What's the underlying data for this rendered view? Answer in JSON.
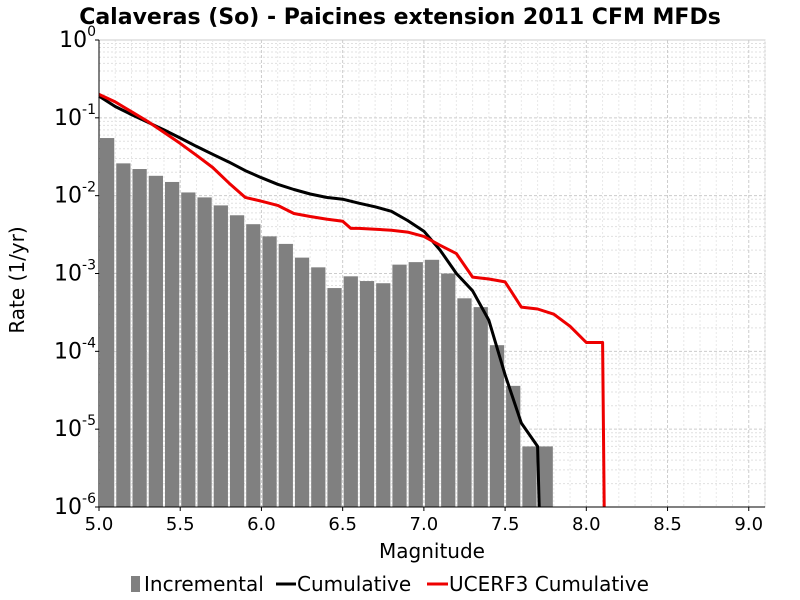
{
  "chart_data": {
    "type": "bar",
    "title": "Calaveras (So) - Paicines extension 2011 CFM MFDs",
    "xlabel": "Magnitude",
    "ylabel": "Rate (1/yr)",
    "xlim": [
      5.0,
      9.1
    ],
    "ylim": [
      1e-06,
      1
    ],
    "yscale": "log",
    "grid": true,
    "legend_position": "bottom",
    "xticks": [
      "5.0",
      "5.5",
      "6.0",
      "6.5",
      "7.0",
      "7.5",
      "8.0",
      "8.5",
      "9.0"
    ],
    "yticks": [
      {
        "base": "10",
        "exp": "-6"
      },
      {
        "base": "10",
        "exp": "-5"
      },
      {
        "base": "10",
        "exp": "-4"
      },
      {
        "base": "10",
        "exp": "-3"
      },
      {
        "base": "10",
        "exp": "-2"
      },
      {
        "base": "10",
        "exp": "-1"
      },
      {
        "base": "10",
        "exp": "0"
      }
    ],
    "series": [
      {
        "name": "Incremental",
        "kind": "bar",
        "color": "#808080",
        "x": [
          5.05,
          5.15,
          5.25,
          5.35,
          5.45,
          5.55,
          5.65,
          5.75,
          5.85,
          5.95,
          6.05,
          6.15,
          6.25,
          6.35,
          6.45,
          6.55,
          6.65,
          6.75,
          6.85,
          6.95,
          7.05,
          7.15,
          7.25,
          7.35,
          7.45,
          7.55,
          7.65,
          7.75
        ],
        "values": [
          0.055,
          0.026,
          0.022,
          0.018,
          0.015,
          0.011,
          0.0095,
          0.0075,
          0.0056,
          0.0043,
          0.003,
          0.0024,
          0.0016,
          0.0012,
          0.00065,
          0.00092,
          0.0008,
          0.00075,
          0.0013,
          0.0014,
          0.0015,
          0.001,
          0.00048,
          0.00037,
          0.00012,
          3.6e-05,
          6e-06,
          6e-06
        ]
      },
      {
        "name": "Cumulative",
        "kind": "line",
        "color": "#000000",
        "x": [
          5.0,
          5.1,
          5.2,
          5.3,
          5.4,
          5.5,
          5.6,
          5.7,
          5.8,
          5.9,
          6.0,
          6.1,
          6.2,
          6.3,
          6.4,
          6.5,
          6.6,
          6.7,
          6.8,
          6.9,
          7.0,
          7.1,
          7.2,
          7.3,
          7.4,
          7.5,
          7.6,
          7.7,
          7.71
        ],
        "values": [
          0.19,
          0.14,
          0.11,
          0.088,
          0.07,
          0.055,
          0.043,
          0.034,
          0.027,
          0.021,
          0.017,
          0.014,
          0.012,
          0.0105,
          0.0095,
          0.009,
          0.008,
          0.0072,
          0.0063,
          0.0048,
          0.0035,
          0.002,
          0.001,
          0.0006,
          0.00025,
          5e-05,
          1.2e-05,
          6e-06,
          1e-06
        ]
      },
      {
        "name": "UCERF3 Cumulative",
        "kind": "line",
        "color": "#ee0000",
        "x": [
          5.0,
          5.1,
          5.2,
          5.3,
          5.4,
          5.5,
          5.6,
          5.7,
          5.8,
          5.9,
          6.0,
          6.1,
          6.2,
          6.3,
          6.4,
          6.5,
          6.55,
          6.6,
          6.7,
          6.8,
          6.9,
          7.0,
          7.1,
          7.2,
          7.3,
          7.4,
          7.5,
          7.6,
          7.7,
          7.8,
          7.9,
          8.0,
          8.1,
          8.11
        ],
        "values": [
          0.2,
          0.16,
          0.12,
          0.09,
          0.065,
          0.047,
          0.033,
          0.023,
          0.0145,
          0.0095,
          0.0085,
          0.0075,
          0.0059,
          0.0054,
          0.005,
          0.0047,
          0.0038,
          0.0038,
          0.0037,
          0.0036,
          0.0034,
          0.003,
          0.0023,
          0.0018,
          0.0009,
          0.00085,
          0.00078,
          0.00037,
          0.00035,
          0.0003,
          0.00021,
          0.00013,
          0.00013,
          1e-06
        ]
      }
    ]
  }
}
